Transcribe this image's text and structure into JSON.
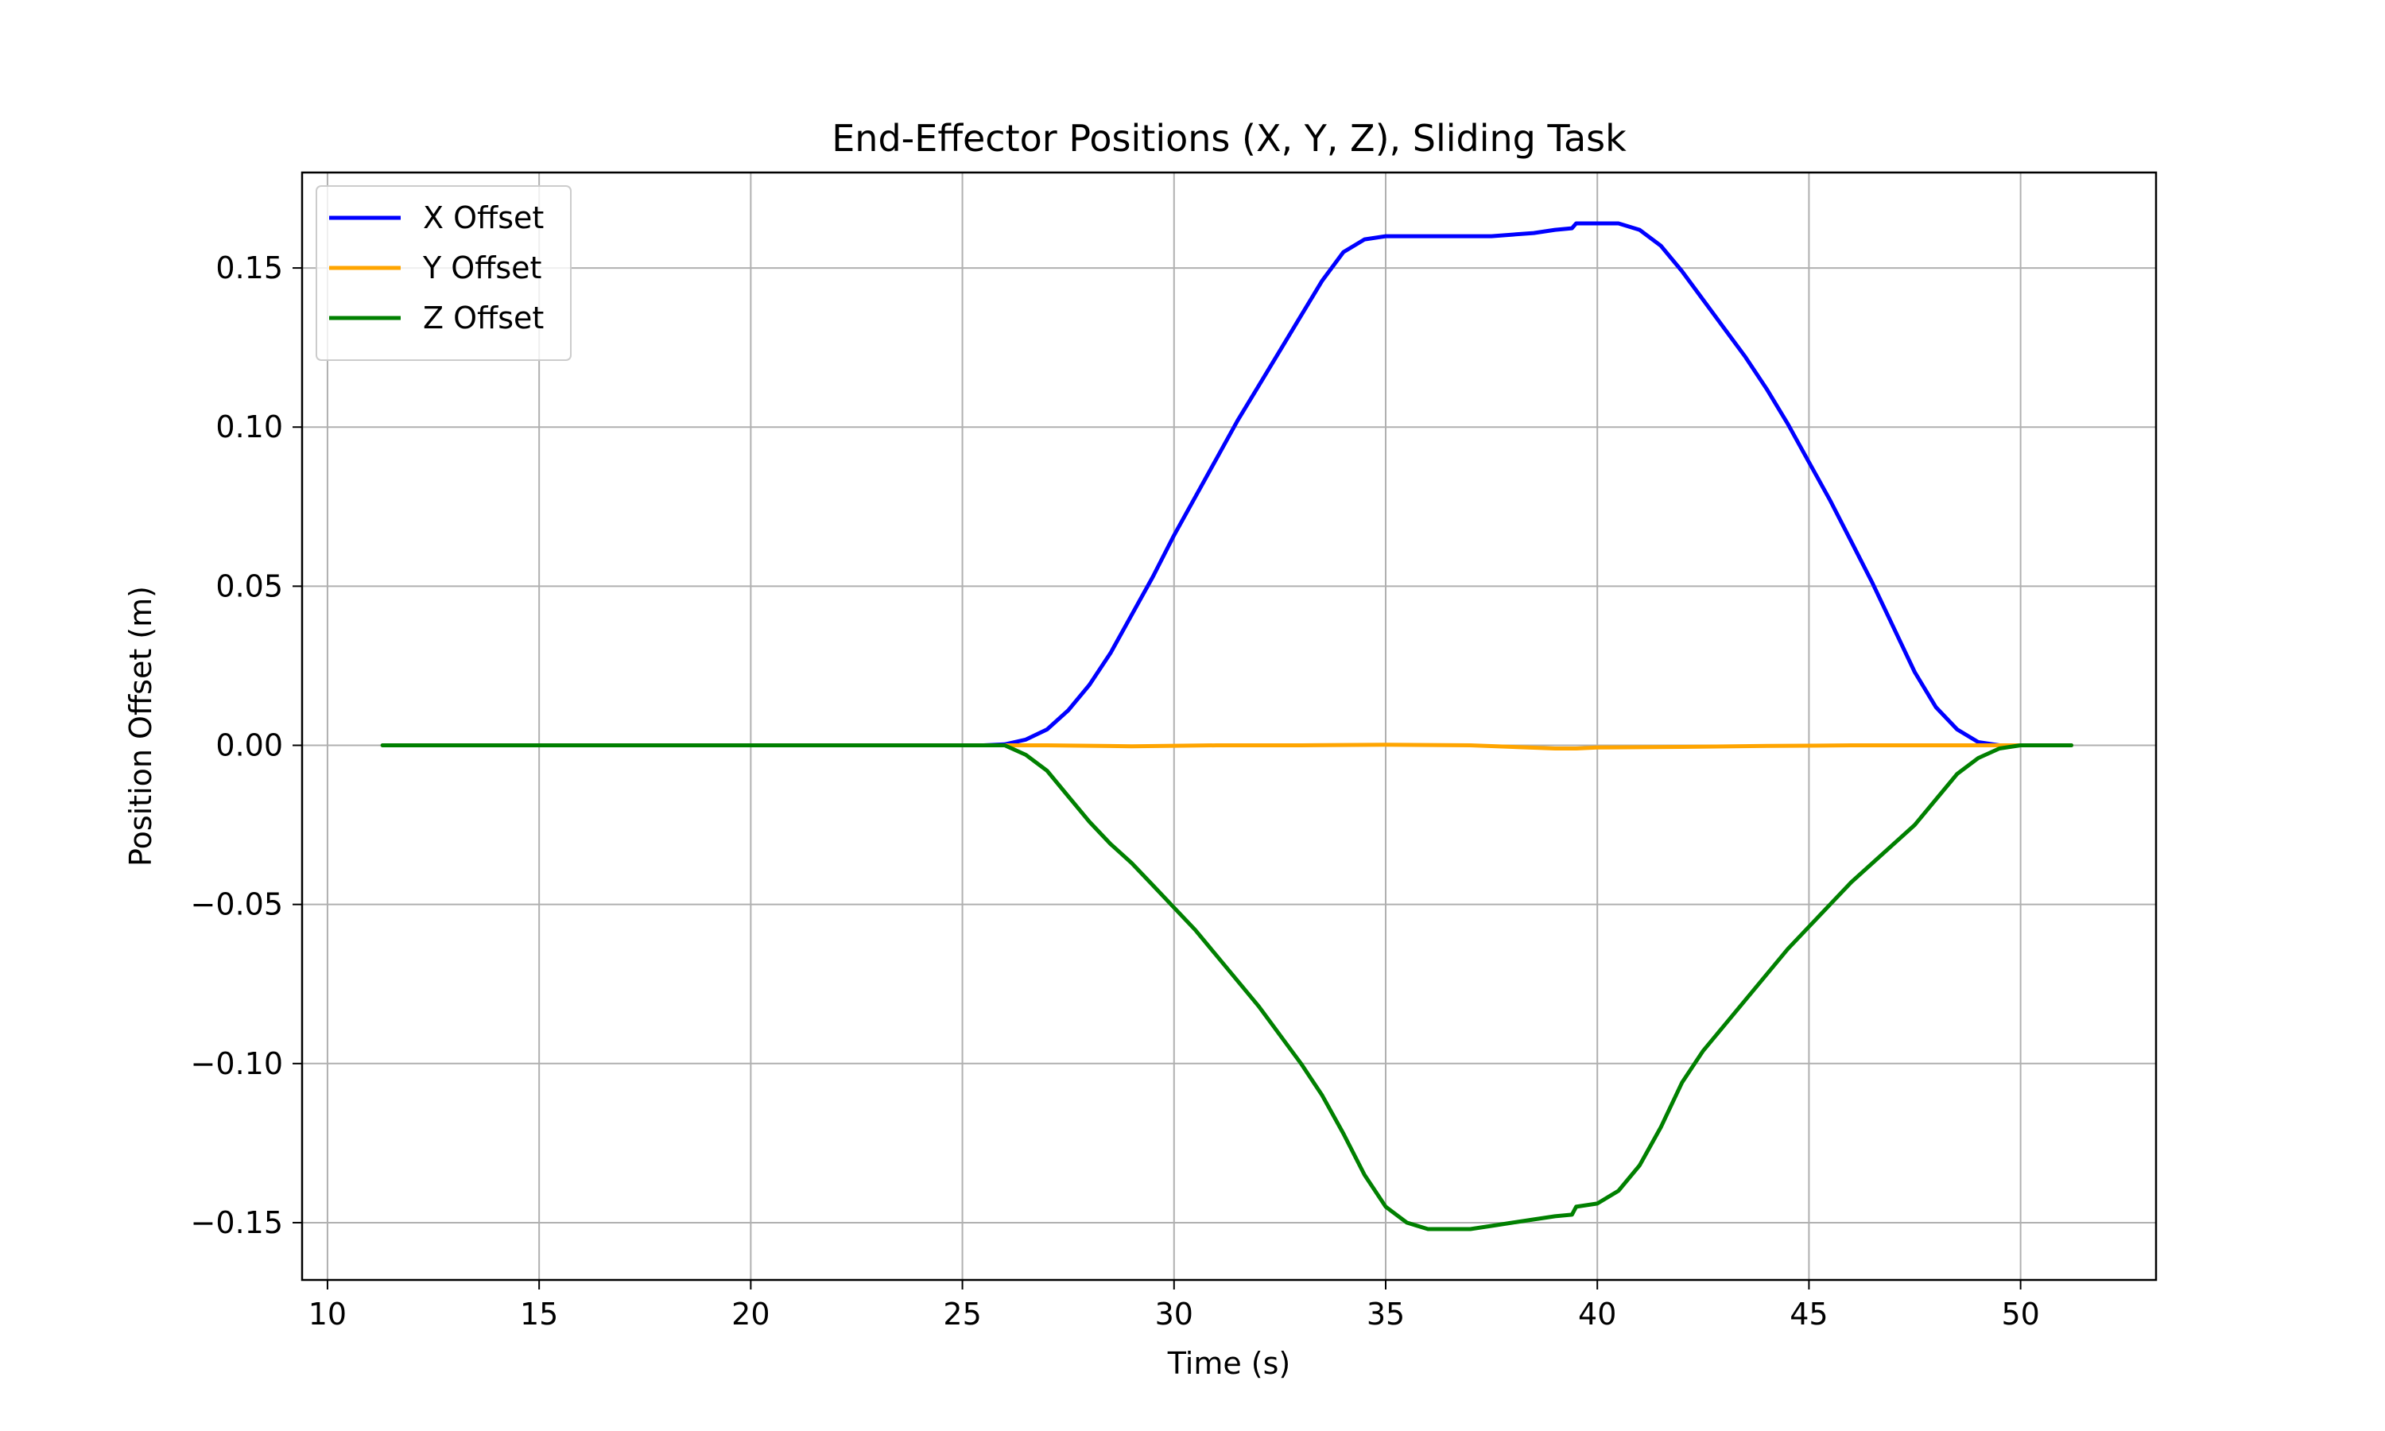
{
  "chart_data": {
    "type": "line",
    "title": "End-Effector Positions (X, Y, Z), Sliding Task",
    "xlabel": "Time (s)",
    "ylabel": "Position Offset (m)",
    "xlim": [
      9.4,
      53.2
    ],
    "ylim": [
      -0.168,
      0.18
    ],
    "xticks": [
      10,
      15,
      20,
      25,
      30,
      35,
      40,
      45,
      50
    ],
    "xtick_labels": [
      "10",
      "15",
      "20",
      "25",
      "30",
      "35",
      "40",
      "45",
      "50"
    ],
    "yticks": [
      -0.15,
      -0.1,
      -0.05,
      0.0,
      0.05,
      0.1,
      0.15
    ],
    "ytick_labels": [
      "−0.15",
      "−0.10",
      "−0.05",
      "0.00",
      "0.05",
      "0.10",
      "0.15"
    ],
    "grid": true,
    "legend_position": "top-left",
    "series": [
      {
        "name": "X Offset",
        "color": "#0000ff",
        "x": [
          11.3,
          25.5,
          26.0,
          26.5,
          27.0,
          27.5,
          28.0,
          28.5,
          29.0,
          29.5,
          30.0,
          30.5,
          31.0,
          31.5,
          32.0,
          32.5,
          33.0,
          33.5,
          34.0,
          34.5,
          35.0,
          35.5,
          36.0,
          36.5,
          37.0,
          37.5,
          38.0,
          38.5,
          39.0,
          39.4,
          39.5,
          40.0,
          40.5,
          41.0,
          41.5,
          42.0,
          42.5,
          43.0,
          43.5,
          44.0,
          44.5,
          45.0,
          45.5,
          46.0,
          46.5,
          47.0,
          47.5,
          48.0,
          48.5,
          49.0,
          49.5,
          50.0,
          51.2
        ],
        "y": [
          0.0,
          0.0,
          0.0003,
          0.0018,
          0.005,
          0.011,
          0.019,
          0.029,
          0.041,
          0.053,
          0.066,
          0.078,
          0.09,
          0.102,
          0.113,
          0.124,
          0.135,
          0.146,
          0.155,
          0.159,
          0.16,
          0.16,
          0.16,
          0.16,
          0.16,
          0.16,
          0.1605,
          0.161,
          0.162,
          0.1625,
          0.164,
          0.164,
          0.164,
          0.162,
          0.157,
          0.149,
          0.14,
          0.131,
          0.122,
          0.112,
          0.101,
          0.089,
          0.077,
          0.064,
          0.051,
          0.037,
          0.023,
          0.012,
          0.005,
          0.001,
          0.0,
          0.0,
          0.0
        ]
      },
      {
        "name": "Y Offset",
        "color": "#ffa500",
        "x": [
          11.3,
          25.5,
          27.0,
          29.0,
          31.0,
          33.0,
          35.0,
          37.0,
          38.0,
          39.0,
          39.5,
          40.0,
          42.0,
          44.0,
          46.0,
          48.0,
          50.0,
          51.2
        ],
        "y": [
          0.0,
          0.0,
          0.0,
          -0.0003,
          0.0,
          0.0,
          0.0002,
          0.0,
          -0.0005,
          -0.001,
          -0.001,
          -0.0007,
          -0.0005,
          -0.0002,
          0.0,
          0.0,
          0.0,
          0.0
        ]
      },
      {
        "name": "Z Offset",
        "color": "#008000",
        "x": [
          11.3,
          25.5,
          26.0,
          26.5,
          27.0,
          27.5,
          28.0,
          28.5,
          29.0,
          29.5,
          30.0,
          30.5,
          31.0,
          31.5,
          32.0,
          32.5,
          33.0,
          33.5,
          34.0,
          34.5,
          35.0,
          35.5,
          36.0,
          36.5,
          37.0,
          37.5,
          38.0,
          38.5,
          39.0,
          39.4,
          39.5,
          40.0,
          40.5,
          41.0,
          41.5,
          42.0,
          42.5,
          43.0,
          43.5,
          44.0,
          44.5,
          45.0,
          45.5,
          46.0,
          46.5,
          47.0,
          47.5,
          48.0,
          48.5,
          49.0,
          49.5,
          50.0,
          51.2
        ],
        "y": [
          0.0,
          0.0,
          0.0,
          -0.003,
          -0.008,
          -0.016,
          -0.024,
          -0.031,
          -0.037,
          -0.044,
          -0.051,
          -0.058,
          -0.066,
          -0.074,
          -0.082,
          -0.091,
          -0.1,
          -0.11,
          -0.122,
          -0.135,
          -0.145,
          -0.15,
          -0.152,
          -0.152,
          -0.152,
          -0.151,
          -0.15,
          -0.149,
          -0.148,
          -0.1475,
          -0.145,
          -0.144,
          -0.14,
          -0.132,
          -0.12,
          -0.106,
          -0.096,
          -0.088,
          -0.08,
          -0.072,
          -0.064,
          -0.057,
          -0.05,
          -0.043,
          -0.037,
          -0.031,
          -0.025,
          -0.017,
          -0.009,
          -0.004,
          -0.001,
          0.0,
          0.0
        ]
      }
    ]
  }
}
